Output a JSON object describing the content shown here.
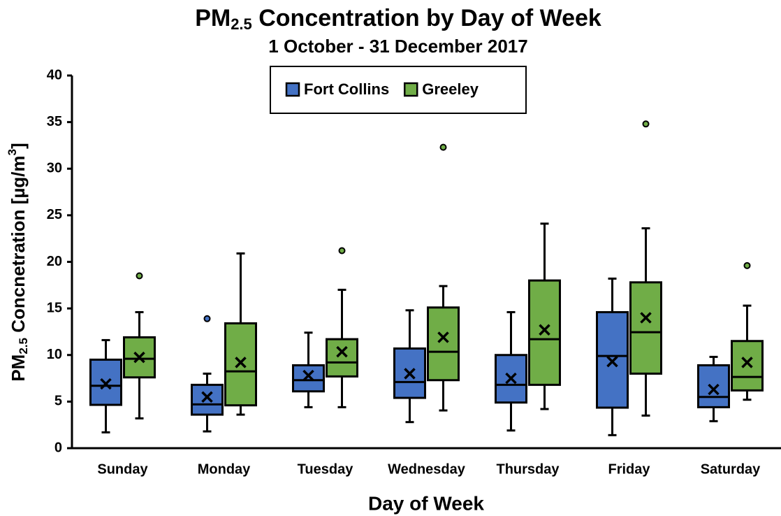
{
  "chart_data": {
    "type": "box",
    "title": {
      "main": "PM",
      "sub": "2.5",
      "rest": " Concentration by Day of Week"
    },
    "subtitle": "1 October - 31 December 2017",
    "x_label": "Day of Week",
    "y_label": {
      "main": "PM",
      "sub": "2.5",
      "rest": " Concnetration [µg/m",
      "sup": "3",
      "end": "]"
    },
    "categories": [
      "Sunday",
      "Monday",
      "Tuesday",
      "Wednesday",
      "Thursday",
      "Friday",
      "Saturday"
    ],
    "ylim": [
      0,
      40
    ],
    "yticks": [
      0,
      5,
      10,
      15,
      20,
      25,
      30,
      35,
      40
    ],
    "legend": "top",
    "series": [
      {
        "name": "Fort Collins",
        "color": "#4472c4",
        "min": [
          1.7,
          1.8,
          4.4,
          2.8,
          1.9,
          1.4,
          2.9
        ],
        "q1": [
          4.65,
          3.6,
          6.1,
          5.4,
          4.9,
          4.35,
          4.4
        ],
        "median": [
          6.7,
          4.7,
          7.3,
          7.1,
          6.8,
          9.9,
          5.5
        ],
        "q3": [
          9.5,
          6.8,
          8.9,
          10.7,
          10.0,
          14.6,
          8.9
        ],
        "max": [
          11.6,
          8.0,
          12.4,
          14.8,
          14.6,
          18.2,
          9.8
        ],
        "mean": [
          6.9,
          5.5,
          7.8,
          8.0,
          7.5,
          9.3,
          6.3
        ],
        "outliers": [
          [],
          [
            13.9
          ],
          [],
          [],
          [],
          [],
          []
        ]
      },
      {
        "name": "Greeley",
        "color": "#70ad47",
        "min": [
          3.2,
          3.6,
          4.4,
          4.05,
          4.2,
          3.5,
          5.2
        ],
        "q1": [
          7.6,
          4.6,
          7.7,
          7.3,
          6.8,
          8.0,
          6.2
        ],
        "median": [
          9.6,
          8.25,
          9.2,
          10.35,
          11.7,
          12.45,
          7.65
        ],
        "q3": [
          11.9,
          13.4,
          11.7,
          15.1,
          18.0,
          17.8,
          11.5
        ],
        "max": [
          14.6,
          20.9,
          17.0,
          17.4,
          24.1,
          23.6,
          15.3
        ],
        "mean": [
          9.75,
          9.2,
          10.35,
          11.9,
          12.7,
          14.0,
          9.2
        ],
        "outliers": [
          [
            18.5
          ],
          [],
          [
            21.2
          ],
          [
            32.3
          ],
          [],
          [
            34.8
          ],
          [
            19.6
          ]
        ]
      }
    ]
  }
}
